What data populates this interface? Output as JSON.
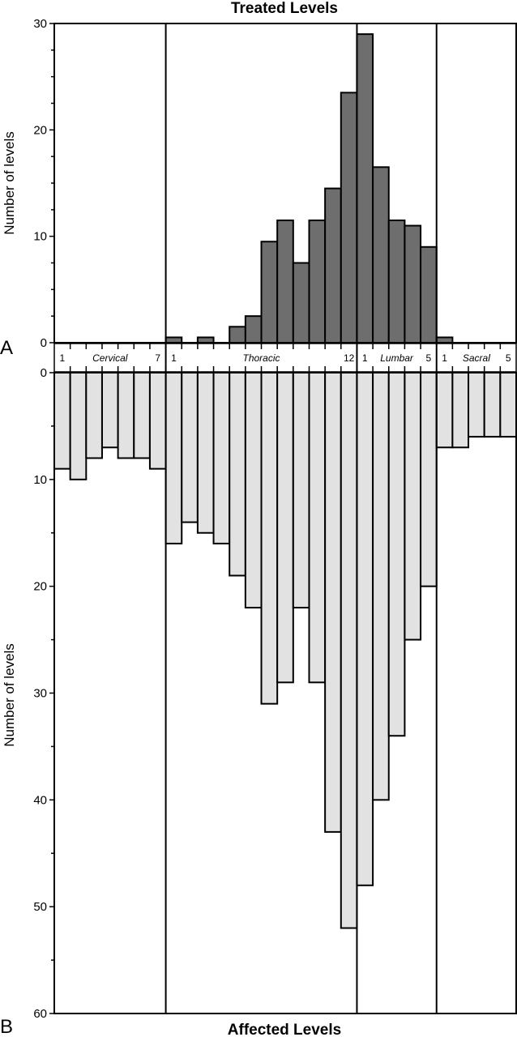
{
  "chart_data": [
    {
      "panel": "A",
      "type": "bar",
      "title": "Treated Levels",
      "ylabel": "Number of levels",
      "ylim": [
        0,
        30
      ],
      "yticks": [
        0,
        10,
        20,
        30
      ],
      "categories": [
        "C1",
        "C2",
        "C3",
        "C4",
        "C5",
        "C6",
        "C7",
        "T1",
        "T2",
        "T3",
        "T4",
        "T5",
        "T6",
        "T7",
        "T8",
        "T9",
        "T10",
        "T11",
        "T12",
        "L1",
        "L2",
        "L3",
        "L4",
        "L5",
        "S1",
        "S2",
        "S3",
        "S4",
        "S5"
      ],
      "values": [
        0,
        0,
        0,
        0,
        0,
        0,
        0,
        0.5,
        0,
        0.5,
        0,
        1.5,
        2.5,
        9.5,
        11.5,
        7.5,
        11.5,
        14.5,
        23.5,
        29,
        16.5,
        11.5,
        11,
        9,
        0.5,
        0,
        0,
        0,
        0
      ],
      "color": "#6e6e6e"
    },
    {
      "panel": "B",
      "type": "bar",
      "title": "Affected Levels",
      "ylabel": "Number of levels",
      "ylim": [
        0,
        60
      ],
      "yticks": [
        0,
        10,
        20,
        30,
        40,
        50,
        60
      ],
      "inverted": true,
      "categories": [
        "C1",
        "C2",
        "C3",
        "C4",
        "C5",
        "C6",
        "C7",
        "T1",
        "T2",
        "T3",
        "T4",
        "T5",
        "T6",
        "T7",
        "T8",
        "T9",
        "T10",
        "T11",
        "T12",
        "L1",
        "L2",
        "L3",
        "L4",
        "L5",
        "S1",
        "S2",
        "S3",
        "S4",
        "S5"
      ],
      "values": [
        9,
        10,
        8,
        7,
        8,
        8,
        9,
        16,
        14,
        15,
        16,
        19,
        22,
        31,
        29,
        22,
        29,
        43,
        52,
        48,
        40,
        34,
        25,
        20,
        7,
        7,
        6,
        6,
        6
      ],
      "color": "#e2e2e2"
    }
  ],
  "level_axis": {
    "regions": [
      {
        "name": "Cervical",
        "count": 7,
        "first_label": "1",
        "last_label": "7"
      },
      {
        "name": "Thoracic",
        "count": 12,
        "first_label": "1",
        "last_label": "12"
      },
      {
        "name": "Lumbar",
        "count": 5,
        "first_label": "1",
        "last_label": "5"
      },
      {
        "name": "Sacral",
        "count": 5,
        "first_label": "1",
        "last_label": "5"
      }
    ]
  },
  "panel_labels": {
    "a": "A",
    "b": "B"
  }
}
